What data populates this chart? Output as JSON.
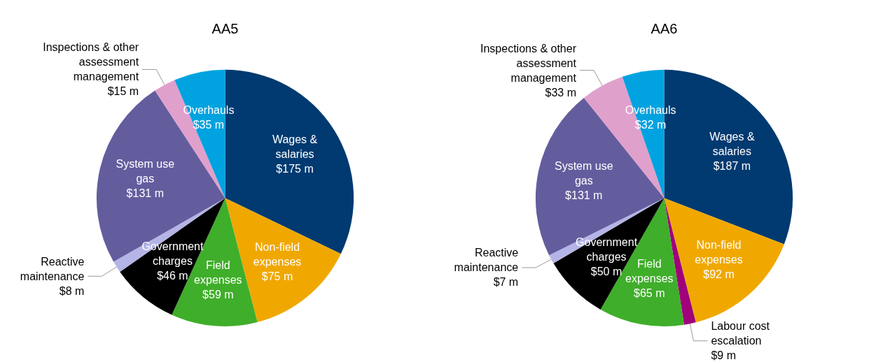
{
  "chart_data": [
    {
      "type": "pie",
      "title": "AA5",
      "categories": [
        "Wages & salaries",
        "Non-field expenses",
        "Field expenses",
        "Government charges",
        "Reactive maintenance",
        "System use gas",
        "Inspections & other assessment management",
        "Overhauls"
      ],
      "values": [
        175,
        75,
        59,
        46,
        8,
        131,
        15,
        35
      ],
      "value_labels": [
        "$175 m",
        "$75 m",
        "$59 m",
        "$46 m",
        "$8 m",
        "$131 m",
        "$15 m",
        "$35 m"
      ],
      "colors": [
        "#003a70",
        "#f0a800",
        "#3fae2a",
        "#000000",
        "#b4b4e6",
        "#635d9e",
        "#e0a0cc",
        "#00a3e0"
      ]
    },
    {
      "type": "pie",
      "title": "AA6",
      "categories": [
        "Wages & salaries",
        "Non-field expenses",
        "Labour cost escalation",
        "Field expenses",
        "Government charges",
        "Reactive maintenance",
        "System use gas",
        "Inspections & other assessment management",
        "Overhauls"
      ],
      "values": [
        187,
        92,
        9,
        65,
        50,
        7,
        131,
        33,
        32
      ],
      "value_labels": [
        "$187 m",
        "$92 m",
        "$9 m",
        "$65 m",
        "$50 m",
        "$7 m",
        "$131 m",
        "$33 m",
        "$32 m"
      ],
      "colors": [
        "#003a70",
        "#f0a800",
        "#a0007a",
        "#3fae2a",
        "#000000",
        "#b4b4e6",
        "#635d9e",
        "#e0a0cc",
        "#00a3e0"
      ]
    }
  ]
}
